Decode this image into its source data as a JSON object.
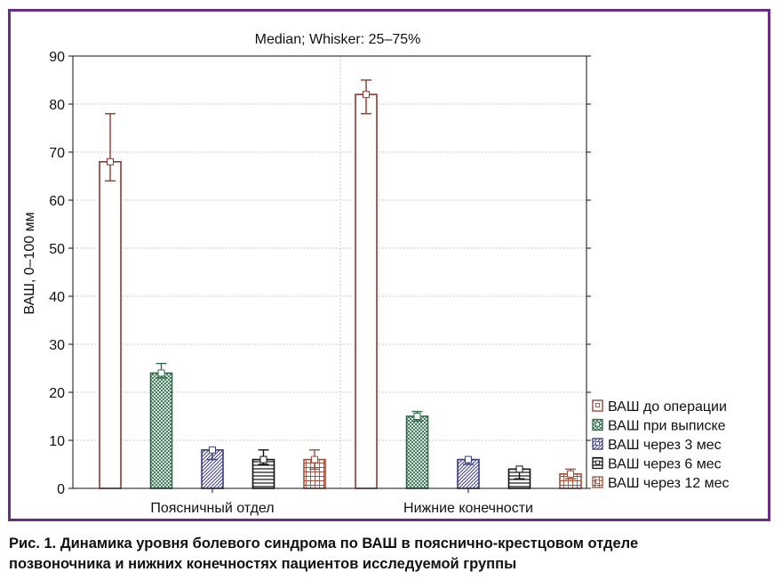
{
  "chart_data": {
    "type": "bar",
    "title": "Median; Whisker: 25–75%",
    "ylabel": "ВАШ, 0–100 мм",
    "xlabel": "",
    "ylim": [
      0,
      90
    ],
    "yticks": [
      0,
      10,
      20,
      30,
      40,
      50,
      60,
      70,
      80,
      90
    ],
    "categories": [
      "Поясничный отдел",
      "Нижние конечности"
    ],
    "grid": true,
    "legend_position": "bottom-right",
    "series": [
      {
        "name": "ВАШ до операции",
        "values": [
          68,
          82
        ],
        "q25": [
          64,
          78
        ],
        "q75": [
          78,
          85
        ],
        "color": "#8b3a2e",
        "pattern": "none"
      },
      {
        "name": "ВАШ при выписке",
        "values": [
          24,
          15
        ],
        "q25": [
          23,
          14
        ],
        "q75": [
          26,
          16
        ],
        "color": "#2e6b4a",
        "pattern": "crosshatch"
      },
      {
        "name": "ВАШ через 3 мес",
        "values": [
          8,
          6
        ],
        "q25": [
          6,
          5
        ],
        "q75": [
          8,
          6
        ],
        "color": "#3c3c7a",
        "pattern": "diagonal"
      },
      {
        "name": "ВАШ через 6 мес",
        "values": [
          6,
          4
        ],
        "q25": [
          5,
          2
        ],
        "q75": [
          8,
          4
        ],
        "color": "#111111",
        "pattern": "horizontal"
      },
      {
        "name": "ВАШ через 12 мес",
        "values": [
          6,
          3
        ],
        "q25": [
          4,
          2
        ],
        "q75": [
          8,
          4
        ],
        "color": "#a0503c",
        "pattern": "grid"
      }
    ]
  },
  "caption": {
    "line1": "Рис. 1. Динамика уровня болевого синдрома по ВАШ в пояснично-крестцовом отделе",
    "line2": "позвоночника и нижних конечностях пациентов исследуемой группы"
  }
}
